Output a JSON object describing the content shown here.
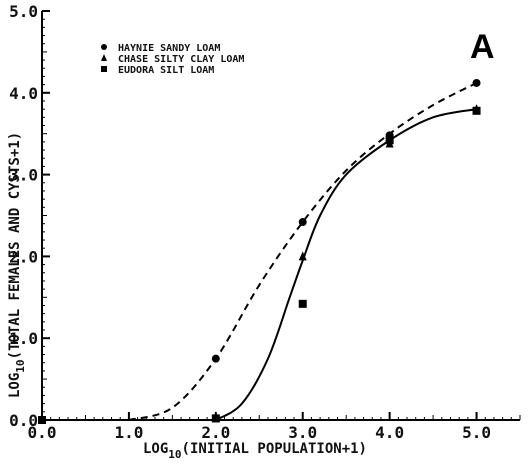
{
  "chart_data": {
    "type": "scatter",
    "panel_label": "A",
    "xlabel_parts": [
      "LOG",
      "10",
      "(INITIAL POPULATION+1)"
    ],
    "ylabel_parts": [
      "LOG",
      "10",
      "(TOTAL FEMALES AND CYSTS+1)"
    ],
    "xlim": [
      0,
      5.5
    ],
    "ylim": [
      0,
      5.0
    ],
    "x_ticks": [
      0,
      1,
      2,
      3,
      4,
      5
    ],
    "x_tick_labels": [
      "0.0",
      "1.0",
      "2.0",
      "3.0",
      "4.0",
      "5.0"
    ],
    "y_ticks": [
      0,
      1,
      2,
      3,
      4,
      5
    ],
    "y_tick_labels": [
      "0.0",
      "1.0",
      "2.0",
      "3.0",
      "4.0",
      "5.0"
    ],
    "legend_position": "top-left",
    "series": [
      {
        "name": "HAYNIE SANDY LOAM",
        "marker": "circle",
        "points": [
          [
            0,
            0
          ],
          [
            2.0,
            0.75
          ],
          [
            3.0,
            2.42
          ],
          [
            4.0,
            3.48
          ],
          [
            5.0,
            4.12
          ]
        ]
      },
      {
        "name": "CHASE SILTY CLAY LOAM",
        "marker": "triangle",
        "points": [
          [
            0,
            0
          ],
          [
            2.0,
            0.02
          ],
          [
            3.0,
            2.0
          ],
          [
            4.0,
            3.38
          ],
          [
            5.0,
            3.8
          ]
        ]
      },
      {
        "name": "EUDORA SILT LOAM",
        "marker": "square",
        "points": [
          [
            0,
            0
          ],
          [
            2.0,
            0.02
          ],
          [
            3.0,
            1.42
          ],
          [
            4.0,
            3.42
          ],
          [
            5.0,
            3.78
          ]
        ]
      }
    ],
    "fitted_curves": [
      {
        "style": "dashed",
        "points": [
          [
            1.0,
            0.0
          ],
          [
            1.5,
            0.15
          ],
          [
            2.0,
            0.75
          ],
          [
            2.5,
            1.65
          ],
          [
            3.0,
            2.42
          ],
          [
            3.5,
            3.05
          ],
          [
            4.0,
            3.5
          ],
          [
            4.5,
            3.85
          ],
          [
            5.0,
            4.12
          ]
        ]
      },
      {
        "style": "solid",
        "points": [
          [
            2.0,
            0.0
          ],
          [
            2.3,
            0.2
          ],
          [
            2.6,
            0.75
          ],
          [
            2.85,
            1.5
          ],
          [
            3.0,
            1.95
          ],
          [
            3.2,
            2.5
          ],
          [
            3.5,
            3.0
          ],
          [
            4.0,
            3.42
          ],
          [
            4.5,
            3.7
          ],
          [
            5.0,
            3.8
          ]
        ]
      }
    ]
  }
}
